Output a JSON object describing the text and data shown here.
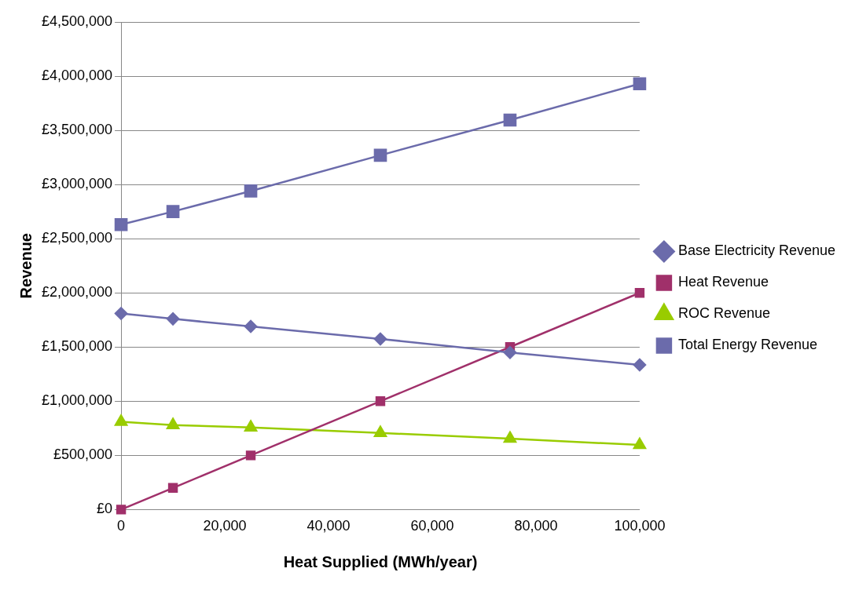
{
  "chart_data": {
    "type": "line",
    "xlabel": "Heat Supplied (MWh/year)",
    "ylabel": "Revenue",
    "x": [
      0,
      10000,
      25000,
      50000,
      75000,
      100000
    ],
    "series": [
      {
        "name": "Base Electricity Revenue",
        "color": "#6b6bab",
        "marker": "diamond",
        "values": [
          1810000,
          1760000,
          1690000,
          1575000,
          1450000,
          1335000
        ]
      },
      {
        "name": "Heat Revenue",
        "color": "#a0306a",
        "marker": "square",
        "values": [
          0,
          200000,
          500000,
          1000000,
          1500000,
          2000000
        ]
      },
      {
        "name": "ROC Revenue",
        "color": "#99cc00",
        "marker": "triangle",
        "values": [
          810000,
          780000,
          758000,
          707000,
          655000,
          596000
        ]
      },
      {
        "name": "Total Energy Revenue",
        "color": "#6b6bab",
        "marker": "square",
        "values": [
          2630000,
          2750000,
          2940000,
          3270000,
          3595000,
          3930000
        ]
      }
    ],
    "xlim": [
      0,
      100000
    ],
    "xticks": [
      0,
      {
        "value": 20000,
        "label": "20,000"
      },
      {
        "value": 40000,
        "label": "40,000"
      },
      {
        "value": 60000,
        "label": "60,000"
      },
      {
        "value": 80000,
        "label": "80,000"
      },
      {
        "value": 100000,
        "label": "100,000"
      }
    ],
    "ylim": [
      0,
      4500000
    ],
    "yticks": [
      {
        "value": 0,
        "label": "£0"
      },
      {
        "value": 500000,
        "label": "£500,000"
      },
      {
        "value": 1000000,
        "label": "£1,000,000"
      },
      {
        "value": 1500000,
        "label": "£1,500,000"
      },
      {
        "value": 2000000,
        "label": "£2,000,000"
      },
      {
        "value": 2500000,
        "label": "£2,500,000"
      },
      {
        "value": 3000000,
        "label": "£3,000,000"
      },
      {
        "value": 3500000,
        "label": "£3,500,000"
      },
      {
        "value": 4000000,
        "label": "£4,000,000"
      },
      {
        "value": 4500000,
        "label": "£4,500,000"
      }
    ],
    "grid": "y",
    "legend": "right",
    "line_style": "solid"
  }
}
